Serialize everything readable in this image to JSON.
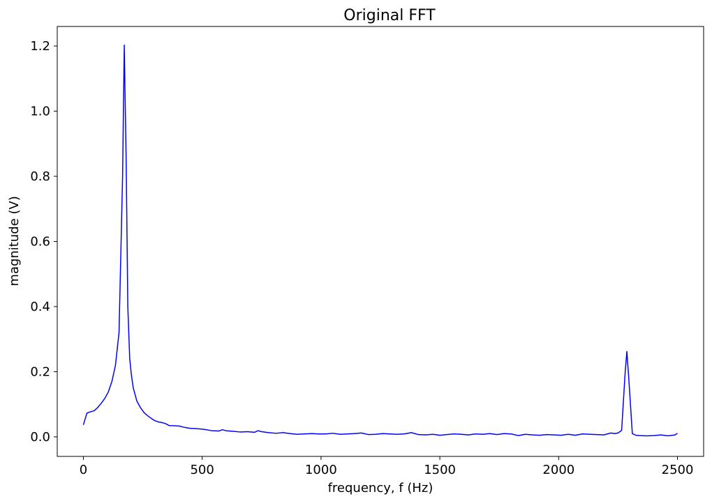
{
  "chart_data": {
    "type": "line",
    "title": "Original FFT",
    "xlabel": "frequency, f (Hz)",
    "ylabel": "magnitude (V)",
    "xlim": [
      -110,
      2610
    ],
    "ylim": [
      -0.06,
      1.26
    ],
    "xticks": [
      0,
      500,
      1000,
      1500,
      2000,
      2500
    ],
    "yticks": [
      0.0,
      0.2,
      0.4,
      0.6,
      0.8,
      1.0,
      1.2
    ],
    "ytick_labels": [
      "0.0",
      "0.2",
      "0.4",
      "0.6",
      "0.8",
      "1.0",
      "1.2"
    ],
    "grid": false,
    "series": [
      {
        "color": "#0000ff",
        "x": [
          0,
          15,
          30,
          45,
          60,
          75,
          90,
          105,
          120,
          135,
          150,
          165,
          172,
          180,
          187,
          195,
          202,
          210,
          225,
          240,
          255,
          270,
          285,
          300,
          315,
          330,
          345,
          360,
          375,
          390,
          405,
          420,
          435,
          450,
          480,
          510,
          540,
          570,
          585,
          600,
          630,
          660,
          690,
          720,
          735,
          750,
          780,
          810,
          840,
          870,
          900,
          930,
          960,
          990,
          1020,
          1050,
          1080,
          1110,
          1140,
          1170,
          1200,
          1230,
          1260,
          1290,
          1320,
          1350,
          1380,
          1410,
          1440,
          1470,
          1500,
          1530,
          1560,
          1590,
          1620,
          1650,
          1680,
          1710,
          1740,
          1770,
          1800,
          1830,
          1860,
          1890,
          1920,
          1950,
          1980,
          2010,
          2040,
          2070,
          2100,
          2130,
          2160,
          2190,
          2220,
          2235,
          2250,
          2265,
          2280,
          2287,
          2295,
          2310,
          2325,
          2340,
          2370,
          2400,
          2430,
          2460,
          2490,
          2500
        ],
        "y": [
          0.037,
          0.073,
          0.077,
          0.08,
          0.09,
          0.103,
          0.118,
          0.138,
          0.17,
          0.22,
          0.32,
          0.8,
          1.203,
          0.85,
          0.4,
          0.24,
          0.19,
          0.15,
          0.11,
          0.09,
          0.075,
          0.065,
          0.057,
          0.05,
          0.046,
          0.044,
          0.041,
          0.035,
          0.034,
          0.034,
          0.033,
          0.03,
          0.028,
          0.026,
          0.025,
          0.023,
          0.019,
          0.018,
          0.022,
          0.019,
          0.017,
          0.015,
          0.016,
          0.014,
          0.019,
          0.016,
          0.013,
          0.011,
          0.013,
          0.01,
          0.008,
          0.009,
          0.01,
          0.009,
          0.009,
          0.011,
          0.008,
          0.009,
          0.01,
          0.012,
          0.007,
          0.008,
          0.01,
          0.009,
          0.008,
          0.009,
          0.013,
          0.007,
          0.006,
          0.008,
          0.005,
          0.007,
          0.009,
          0.008,
          0.006,
          0.009,
          0.008,
          0.01,
          0.007,
          0.01,
          0.009,
          0.004,
          0.008,
          0.006,
          0.005,
          0.007,
          0.006,
          0.005,
          0.008,
          0.005,
          0.009,
          0.008,
          0.007,
          0.006,
          0.012,
          0.01,
          0.012,
          0.02,
          0.2,
          0.262,
          0.18,
          0.01,
          0.005,
          0.004,
          0.003,
          0.004,
          0.006,
          0.003,
          0.006,
          0.011
        ]
      }
    ]
  }
}
